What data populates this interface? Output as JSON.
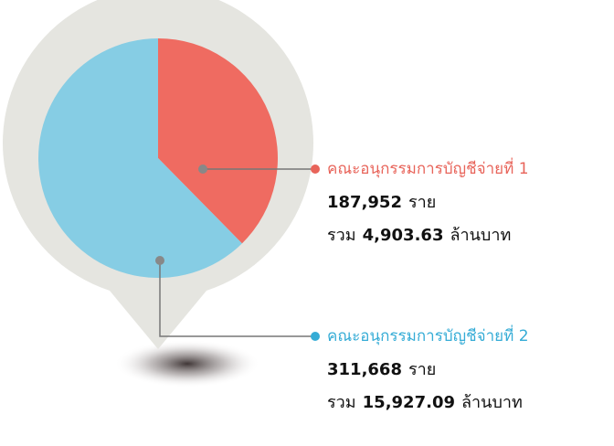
{
  "chart_data": {
    "type": "pie",
    "categories": [
      "คณะอนุกรรมการบัญชีจ่ายที่ 1",
      "คณะอนุกรรมการบัญชีจ่ายที่ 2"
    ],
    "values": [
      187952,
      311668
    ],
    "value_labels": [
      "187,952",
      "311,668"
    ],
    "colors": [
      "#ef6b61",
      "#86cde4"
    ],
    "label_colors": [
      "#e8645a",
      "#35acd6"
    ],
    "count_unit": "ราย",
    "amount_prefix": "รวม",
    "amounts": [
      4903.63,
      15927.09
    ],
    "amount_labels": [
      "4,903.63",
      "15,927.09"
    ],
    "amount_unit": "ล้านบาท"
  }
}
